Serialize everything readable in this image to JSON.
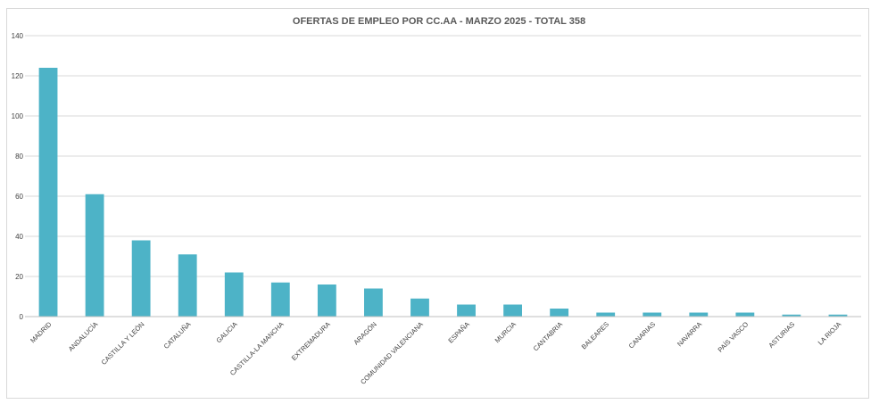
{
  "chart_data": {
    "type": "bar",
    "title": "OFERTAS DE EMPLEO POR CC.AA - MARZO 2025 - TOTAL 358",
    "xlabel": "",
    "ylabel": "",
    "ylim": [
      0,
      140
    ],
    "yticks": [
      0,
      20,
      40,
      60,
      80,
      100,
      120,
      140
    ],
    "grid": true,
    "legend": "none",
    "bar_color": "#4db3c7",
    "categories": [
      "MADRID",
      "ANDALUCÍA",
      "CASTILLA Y LEÓN",
      "CATALUÑA",
      "GALICIA",
      "CASTILLA-LA MANCHA",
      "EXTREMADURA",
      "ARAGÓN",
      "COMUNIDAD VALENCIANA",
      "ESPAÑA",
      "MURCIA",
      "CANTABRIA",
      "BALEARES",
      "CANARIAS",
      "NAVARRA",
      "PAÍS VASCO",
      "ASTURIAS",
      "LA RIOJA"
    ],
    "values": [
      124,
      61,
      38,
      31,
      22,
      17,
      16,
      14,
      9,
      6,
      6,
      4,
      2,
      2,
      2,
      2,
      1,
      1
    ]
  }
}
